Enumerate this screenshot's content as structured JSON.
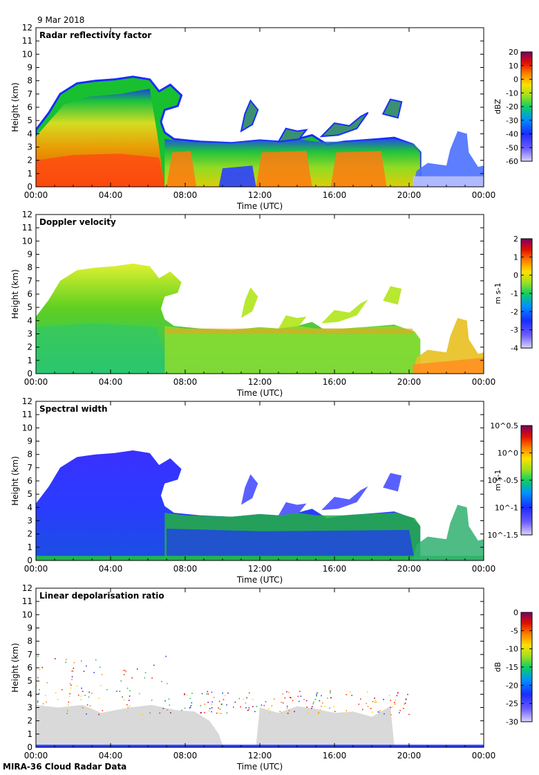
{
  "header": {
    "date": "9 Mar 2018"
  },
  "footer": {
    "label": "MIRA-36 Cloud Radar Data"
  },
  "colors": {
    "gray_ldr": "#d9d9d9",
    "low": "#d6d0ff",
    "high": "#7a0a5a"
  },
  "chart_data": [
    {
      "type": "heatmap",
      "title": "Radar reflectivity factor",
      "xlabel": "Time (UTC)",
      "ylabel": "Height (km)",
      "xticks": [
        "00:00",
        "04:00",
        "08:00",
        "12:00",
        "16:00",
        "20:00",
        "00:00"
      ],
      "xlim_hours": [
        0,
        24
      ],
      "ylim": [
        0,
        12
      ],
      "yticks": [
        0,
        1,
        2,
        3,
        4,
        5,
        6,
        7,
        8,
        9,
        10,
        11,
        12
      ],
      "colorbar": {
        "unit": "dBZ",
        "ticks": [
          "20",
          "10",
          "0",
          "-10",
          "-20",
          "-30",
          "-40",
          "-50",
          "-60"
        ],
        "range": [
          -60,
          20
        ]
      }
    },
    {
      "type": "heatmap",
      "title": "Doppler velocity",
      "xlabel": "Time (UTC)",
      "ylabel": "Height (km)",
      "xticks": [
        "00:00",
        "04:00",
        "08:00",
        "12:00",
        "16:00",
        "20:00",
        "00:00"
      ],
      "xlim_hours": [
        0,
        24
      ],
      "ylim": [
        0,
        12
      ],
      "yticks": [
        0,
        1,
        2,
        3,
        4,
        5,
        6,
        7,
        8,
        9,
        10,
        11,
        12
      ],
      "colorbar": {
        "unit": "m s-1",
        "ticks": [
          "2",
          "1",
          "0",
          "-1",
          "-2",
          "-3",
          "-4"
        ],
        "range": [
          -4,
          2
        ]
      }
    },
    {
      "type": "heatmap",
      "title": "Spectral width",
      "xlabel": "Time (UTC)",
      "ylabel": "Height (km)",
      "xticks": [
        "00:00",
        "04:00",
        "08:00",
        "12:00",
        "16:00",
        "20:00",
        "00:00"
      ],
      "xlim_hours": [
        0,
        24
      ],
      "ylim": [
        0,
        12
      ],
      "yticks": [
        0,
        1,
        2,
        3,
        4,
        5,
        6,
        7,
        8,
        9,
        10,
        11,
        12
      ],
      "colorbar": {
        "unit": "m s-1",
        "ticks": [
          "10^0.5",
          "10^0",
          "10^-0.5",
          "10^-1",
          "10^-1.5"
        ],
        "range": [
          -1.5,
          0.5
        ],
        "scale": "log10"
      }
    },
    {
      "type": "heatmap",
      "title": "Linear depolarisation ratio",
      "xlabel": "Time (UTC)",
      "ylabel": "Height (km)",
      "xticks": [
        "00:00",
        "04:00",
        "08:00",
        "12:00",
        "16:00",
        "20:00",
        "00:00"
      ],
      "xlim_hours": [
        0,
        24
      ],
      "ylim": [
        0,
        12
      ],
      "yticks": [
        0,
        1,
        2,
        3,
        4,
        5,
        6,
        7,
        8,
        9,
        10,
        11,
        12
      ],
      "colorbar": {
        "unit": "dB",
        "ticks": [
          "0",
          "-5",
          "-10",
          "-15",
          "-20",
          "-25",
          "-30"
        ],
        "range": [
          -30,
          0
        ]
      }
    }
  ]
}
